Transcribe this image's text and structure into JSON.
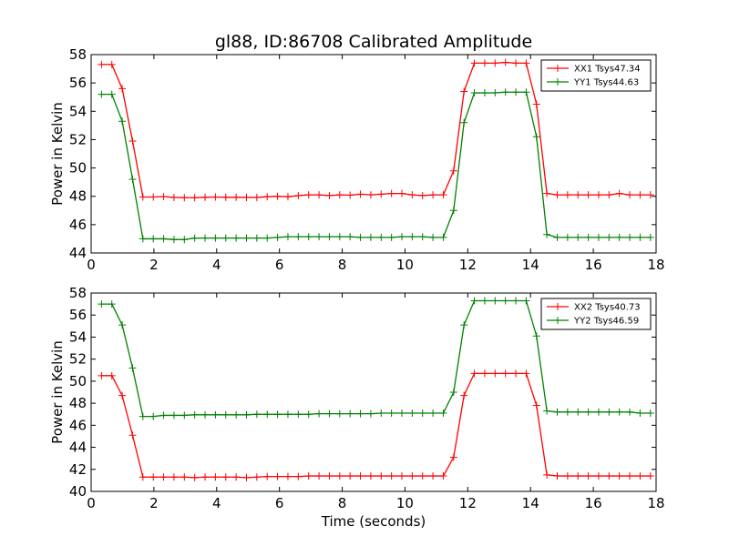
{
  "figure": {
    "title": "gl88, ID:86708 Calibrated Amplitude",
    "xlabel": "Time (seconds)"
  },
  "colors": {
    "xx": "#ff0000",
    "yy": "#008000",
    "axes": "#000000",
    "background": "#ffffff"
  },
  "chart_data": [
    {
      "type": "line",
      "title": "gl88, ID:86708 Calibrated Amplitude",
      "xlabel": "",
      "ylabel": "Power in Kelvin",
      "xlim": [
        0,
        18
      ],
      "ylim": [
        44,
        58
      ],
      "xticks": [
        0,
        2,
        4,
        6,
        8,
        10,
        12,
        14,
        16,
        18
      ],
      "yticks": [
        44,
        46,
        48,
        50,
        52,
        54,
        56,
        58
      ],
      "grid": false,
      "legend": "top-right",
      "marker": "+",
      "x": [
        0.33,
        0.66,
        0.99,
        1.32,
        1.65,
        1.98,
        2.31,
        2.64,
        2.97,
        3.3,
        3.63,
        3.96,
        4.29,
        4.62,
        4.95,
        5.28,
        5.61,
        5.94,
        6.27,
        6.6,
        6.93,
        7.26,
        7.59,
        7.92,
        8.25,
        8.58,
        8.91,
        9.24,
        9.57,
        9.9,
        10.23,
        10.56,
        10.89,
        11.22,
        11.55,
        11.88,
        12.21,
        12.54,
        12.87,
        13.2,
        13.53,
        13.86,
        14.19,
        14.52,
        14.85,
        15.18,
        15.51,
        15.84,
        16.17,
        16.5,
        16.83,
        17.16,
        17.49,
        17.82
      ],
      "series": [
        {
          "name": "XX1 Tsys47.34",
          "color": "#ff0000",
          "values": [
            57.3,
            57.3,
            55.6,
            51.9,
            47.95,
            47.95,
            47.98,
            47.92,
            47.9,
            47.9,
            47.93,
            47.95,
            47.93,
            47.93,
            47.92,
            47.92,
            47.97,
            48.0,
            47.97,
            48.05,
            48.1,
            48.1,
            48.05,
            48.1,
            48.08,
            48.15,
            48.1,
            48.15,
            48.2,
            48.2,
            48.1,
            48.05,
            48.1,
            48.1,
            49.8,
            55.4,
            57.4,
            57.4,
            57.4,
            57.45,
            57.4,
            57.4,
            54.5,
            48.2,
            48.1,
            48.1,
            48.1,
            48.1,
            48.1,
            48.1,
            48.2,
            48.1,
            48.1,
            48.1
          ]
        },
        {
          "name": "YY1 Tsys44.63",
          "color": "#008000",
          "values": [
            55.2,
            55.2,
            53.3,
            49.2,
            45.0,
            45.0,
            45.0,
            44.95,
            44.95,
            45.05,
            45.05,
            45.05,
            45.05,
            45.05,
            45.05,
            45.05,
            45.05,
            45.1,
            45.15,
            45.15,
            45.15,
            45.15,
            45.15,
            45.15,
            45.15,
            45.1,
            45.1,
            45.1,
            45.1,
            45.15,
            45.15,
            45.15,
            45.1,
            45.1,
            47.0,
            53.2,
            55.3,
            55.3,
            55.3,
            55.35,
            55.35,
            55.35,
            52.2,
            45.3,
            45.1,
            45.1,
            45.1,
            45.1,
            45.1,
            45.1,
            45.1,
            45.1,
            45.1,
            45.1
          ]
        }
      ]
    },
    {
      "type": "line",
      "title": "",
      "xlabel": "Time (seconds)",
      "ylabel": "Power in Kelvin",
      "xlim": [
        0,
        18
      ],
      "ylim": [
        40,
        58
      ],
      "xticks": [
        0,
        2,
        4,
        6,
        8,
        10,
        12,
        14,
        16,
        18
      ],
      "yticks": [
        40,
        42,
        44,
        46,
        48,
        50,
        52,
        54,
        56,
        58
      ],
      "grid": false,
      "legend": "top-right",
      "marker": "+",
      "x": [
        0.33,
        0.66,
        0.99,
        1.32,
        1.65,
        1.98,
        2.31,
        2.64,
        2.97,
        3.3,
        3.63,
        3.96,
        4.29,
        4.62,
        4.95,
        5.28,
        5.61,
        5.94,
        6.27,
        6.6,
        6.93,
        7.26,
        7.59,
        7.92,
        8.25,
        8.58,
        8.91,
        9.24,
        9.57,
        9.9,
        10.23,
        10.56,
        10.89,
        11.22,
        11.55,
        11.88,
        12.21,
        12.54,
        12.87,
        13.2,
        13.53,
        13.86,
        14.19,
        14.52,
        14.85,
        15.18,
        15.51,
        15.84,
        16.17,
        16.5,
        16.83,
        17.16,
        17.49,
        17.82
      ],
      "series": [
        {
          "name": "XX2 Tsys40.73",
          "color": "#ff0000",
          "values": [
            50.5,
            50.5,
            48.7,
            45.1,
            41.3,
            41.3,
            41.3,
            41.3,
            41.3,
            41.25,
            41.3,
            41.3,
            41.3,
            41.3,
            41.25,
            41.3,
            41.35,
            41.35,
            41.35,
            41.35,
            41.4,
            41.4,
            41.4,
            41.4,
            41.4,
            41.4,
            41.4,
            41.4,
            41.4,
            41.4,
            41.4,
            41.4,
            41.4,
            41.4,
            43.1,
            48.7,
            50.7,
            50.7,
            50.7,
            50.7,
            50.7,
            50.7,
            47.8,
            41.5,
            41.4,
            41.4,
            41.4,
            41.4,
            41.4,
            41.4,
            41.4,
            41.4,
            41.4,
            41.4
          ]
        },
        {
          "name": "YY2 Tsys46.59",
          "color": "#008000",
          "values": [
            57.0,
            57.0,
            55.1,
            51.2,
            46.8,
            46.8,
            46.9,
            46.9,
            46.9,
            46.95,
            46.95,
            46.95,
            46.95,
            46.95,
            46.95,
            47.0,
            47.0,
            47.0,
            47.0,
            47.0,
            47.0,
            47.05,
            47.05,
            47.05,
            47.05,
            47.05,
            47.05,
            47.1,
            47.1,
            47.1,
            47.1,
            47.1,
            47.1,
            47.1,
            49.0,
            55.1,
            57.3,
            57.3,
            57.3,
            57.3,
            57.3,
            57.3,
            54.1,
            47.3,
            47.2,
            47.2,
            47.2,
            47.2,
            47.2,
            47.2,
            47.2,
            47.2,
            47.1,
            47.1
          ]
        }
      ]
    }
  ]
}
